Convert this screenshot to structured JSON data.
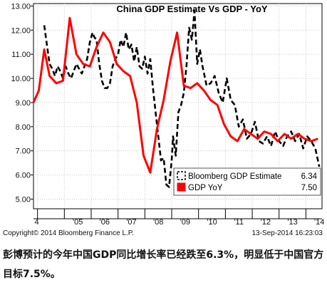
{
  "chart_data": {
    "type": "line",
    "title": "China GDP Estimate Vs GDP - YoY",
    "ylim": [
      4.6,
      13.1
    ],
    "yticks": [
      "13.00",
      "12.00",
      "11.00",
      "10.00",
      "9.00",
      "8.00",
      "7.00",
      "6.00",
      "5.00"
    ],
    "ytick_values": [
      13,
      12,
      11,
      10,
      9,
      8,
      7,
      6,
      5
    ],
    "xlim": [
      2003.85,
      2014.6
    ],
    "xticks": [
      "4",
      "'05",
      "'06",
      "'07",
      "'08",
      "'09",
      "'10",
      "'11",
      "'12",
      "'13",
      "'14"
    ],
    "xtick_positions": [
      2004.0,
      2005.0,
      2006.0,
      2007.0,
      2008.0,
      2009.0,
      2010.0,
      2011.0,
      2012.0,
      2013.0,
      2014.0
    ],
    "grid": true,
    "legend_position": "bottom-right",
    "series": [
      {
        "name": "Bloomberg GDP Estimate",
        "last_value": "6.34",
        "color": "#000000",
        "style": "dashed",
        "x": [
          2004.25,
          2004.35,
          2004.45,
          2004.55,
          2004.65,
          2004.75,
          2004.85,
          2004.95,
          2005.05,
          2005.15,
          2005.25,
          2005.35,
          2005.45,
          2005.55,
          2005.65,
          2005.75,
          2005.85,
          2005.95,
          2006.05,
          2006.12,
          2006.2,
          2006.3,
          2006.4,
          2006.5,
          2006.6,
          2006.7,
          2006.8,
          2006.9,
          2007.0,
          2007.1,
          2007.2,
          2007.3,
          2007.4,
          2007.5,
          2007.6,
          2007.7,
          2007.8,
          2007.9,
          2008.0,
          2008.1,
          2008.2,
          2008.3,
          2008.4,
          2008.5,
          2008.6,
          2008.7,
          2008.8,
          2008.9,
          2009.0,
          2009.05,
          2009.15,
          2009.25,
          2009.35,
          2009.45,
          2009.55,
          2009.65,
          2009.75,
          2009.85,
          2009.95,
          2010.05,
          2010.15,
          2010.3,
          2010.45,
          2010.6,
          2010.75,
          2010.9,
          2011.05,
          2011.2,
          2011.35,
          2011.5,
          2011.65,
          2011.8,
          2011.95,
          2012.1,
          2012.25,
          2012.4,
          2012.55,
          2012.7,
          2012.85,
          2013.0,
          2013.15,
          2013.3,
          2013.45,
          2013.6,
          2013.75,
          2013.9,
          2014.05,
          2014.2,
          2014.35,
          2014.5
        ],
        "values": [
          12.2,
          11.4,
          10.6,
          10.4,
          10.1,
          10.5,
          10.3,
          10.0,
          10.5,
          10.2,
          10.0,
          10.3,
          10.6,
          10.4,
          10.2,
          10.5,
          10.8,
          11.5,
          11.9,
          11.7,
          11.6,
          10.6,
          9.9,
          9.6,
          9.6,
          9.8,
          10.5,
          10.8,
          11.0,
          11.6,
          11.3,
          11.9,
          11.2,
          11.4,
          10.7,
          11.3,
          10.5,
          10.4,
          10.9,
          10.2,
          10.8,
          9.6,
          8.6,
          7.6,
          6.6,
          6.7,
          5.6,
          5.5,
          6.6,
          7.6,
          6.8,
          8.6,
          8.9,
          9.4,
          10.5,
          12.1,
          11.6,
          12.8,
          10.6,
          11.2,
          10.5,
          9.7,
          9.8,
          10.1,
          9.4,
          9.0,
          10.0,
          9.1,
          8.9,
          8.0,
          8.3,
          7.5,
          7.7,
          8.2,
          7.4,
          7.3,
          7.6,
          7.2,
          7.8,
          7.4,
          7.2,
          7.6,
          7.8,
          7.4,
          7.7,
          7.1,
          7.6,
          7.4,
          7.1,
          6.34
        ]
      },
      {
        "name": "GDP YoY",
        "last_value": "7.50",
        "color": "#ff0000",
        "style": "solid",
        "x": [
          2003.85,
          2004.05,
          2004.25,
          2004.45,
          2004.7,
          2004.95,
          2005.2,
          2005.45,
          2005.7,
          2005.95,
          2006.2,
          2006.45,
          2006.7,
          2006.95,
          2007.2,
          2007.45,
          2007.7,
          2007.95,
          2008.2,
          2008.45,
          2008.7,
          2008.95,
          2009.2,
          2009.45,
          2009.7,
          2009.95,
          2010.2,
          2010.45,
          2010.7,
          2010.95,
          2011.2,
          2011.45,
          2011.7,
          2011.95,
          2012.2,
          2012.45,
          2012.7,
          2012.95,
          2013.2,
          2013.45,
          2013.7,
          2013.95,
          2014.2,
          2014.45
        ],
        "values": [
          9.0,
          9.5,
          11.2,
          10.1,
          9.8,
          9.9,
          12.5,
          11.0,
          10.6,
          10.5,
          11.3,
          11.9,
          11.5,
          10.6,
          10.3,
          10.1,
          9.0,
          6.8,
          6.1,
          7.9,
          9.1,
          10.7,
          11.9,
          9.7,
          9.6,
          9.8,
          9.5,
          9.1,
          8.9,
          8.1,
          7.6,
          7.4,
          7.9,
          7.7,
          7.5,
          7.8,
          7.7,
          7.4,
          7.7,
          7.5,
          7.7,
          7.5,
          7.4,
          7.5
        ]
      }
    ]
  },
  "footer": {
    "copyright": "Copyright© 2014 Bloomberg Finance L.P.",
    "timestamp": "13-Sep-2014 16:23:03"
  },
  "caption": "彭博预计的今年中国GDP同比增长率已经跌至6.3%，明显低于中国官方目标7.5%。",
  "colors": {
    "plot_bg": "#ffffff",
    "grid": "#c8c8c8",
    "estimate_line": "#000000",
    "gdp_line": "#ff0000"
  }
}
